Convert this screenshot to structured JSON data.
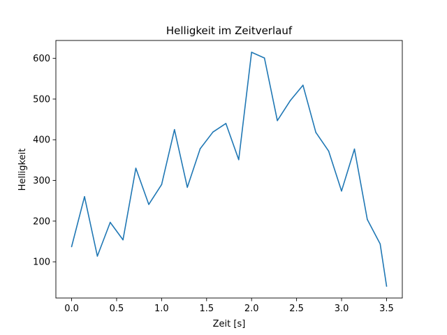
{
  "chart_data": {
    "type": "line",
    "title": "Helligkeit im Zeitverlauf",
    "xlabel": "Zeit [s]",
    "ylabel": "Helligkeit",
    "xlim": [
      -0.175,
      3.675
    ],
    "ylim": [
      11,
      644
    ],
    "xticks": [
      0.0,
      0.5,
      1.0,
      1.5,
      2.0,
      2.5,
      3.0,
      3.5
    ],
    "xtick_labels": [
      "0.0",
      "0.5",
      "1.0",
      "1.5",
      "2.0",
      "2.5",
      "3.0",
      "3.5"
    ],
    "yticks": [
      100,
      200,
      300,
      400,
      500,
      600
    ],
    "ytick_labels": [
      "100",
      "200",
      "300",
      "400",
      "500",
      "600"
    ],
    "grid": false,
    "color": "#1f77b4",
    "series": [
      {
        "x": [
          0.0,
          0.143,
          0.286,
          0.429,
          0.571,
          0.714,
          0.857,
          1.0,
          1.143,
          1.286,
          1.429,
          1.571,
          1.714,
          1.857,
          2.0,
          2.143,
          2.286,
          2.429,
          2.571,
          2.714,
          2.857,
          3.0,
          3.143,
          3.286,
          3.429,
          3.5
        ],
        "values": [
          137,
          260,
          114,
          197,
          154,
          330,
          241,
          290,
          425,
          283,
          378,
          419,
          440,
          351,
          615,
          601,
          447,
          496,
          534,
          418,
          372,
          274,
          377,
          204,
          144,
          40
        ]
      }
    ]
  }
}
